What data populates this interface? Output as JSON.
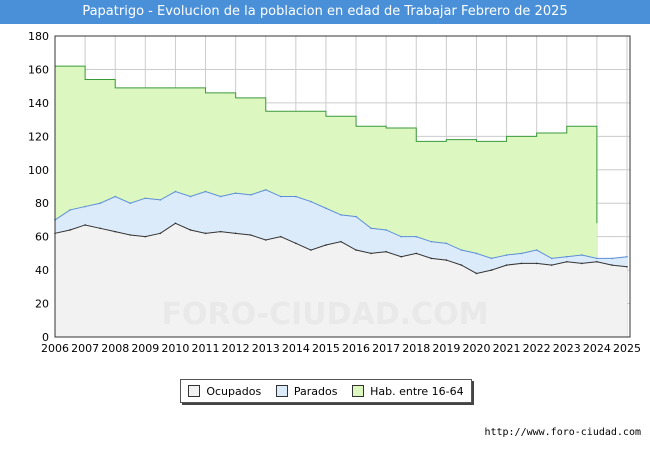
{
  "title": "Papatrigo - Evolucion de la poblacion en edad de Trabajar Febrero de 2025",
  "source": "http://www.foro-ciudad.com",
  "colors": {
    "title_bg": "#4a90d9",
    "occupied_fill": "#f2f2f2",
    "unemployed_fill": "#dcebfa",
    "population_fill": "#ddf7c0",
    "population_line": "#3a9a3a",
    "unemployed_line": "#5c8fd6",
    "occupied_line": "#333333"
  },
  "chart_data": {
    "type": "area",
    "title": "Papatrigo - Evolucion de la poblacion en edad de Trabajar Febrero de 2025",
    "xlabel": "",
    "ylabel": "",
    "x_ticks": [
      "2006",
      "2007",
      "2008",
      "2009",
      "2010",
      "2011",
      "2012",
      "2013",
      "2014",
      "2015",
      "2016",
      "2017",
      "2018",
      "2019",
      "2020",
      "2021",
      "2022",
      "2023",
      "2024",
      "2025"
    ],
    "y_ticks": [
      0,
      20,
      40,
      60,
      80,
      100,
      120,
      140,
      160,
      180
    ],
    "ylim": [
      0,
      180
    ],
    "xlim": [
      2006,
      2025.1
    ],
    "grid": true,
    "legend": {
      "position": "bottom-center",
      "entries": [
        {
          "key": "occupied",
          "label": "Ocupados"
        },
        {
          "key": "unemployed",
          "label": "Parados"
        },
        {
          "key": "population",
          "label": "Hab. entre 16-64"
        }
      ]
    },
    "series": [
      {
        "key": "population",
        "name": "Hab. entre 16-64",
        "type": "step",
        "x_start": [
          2006,
          2007,
          2008,
          2009,
          2010,
          2011,
          2012,
          2013,
          2014,
          2015,
          2016,
          2017,
          2018,
          2019,
          2020,
          2021,
          2022,
          2023
        ],
        "values": [
          162,
          154,
          149,
          149,
          149,
          146,
          143,
          135,
          135,
          132,
          126,
          125,
          117,
          118,
          117,
          120,
          122,
          126
        ],
        "end_x": 2024,
        "end_value": 68
      },
      {
        "key": "unemployed",
        "name": "Parados",
        "type": "line",
        "x": [
          2006,
          2006.5,
          2007,
          2007.5,
          2008,
          2008.5,
          2009,
          2009.5,
          2010,
          2010.5,
          2011,
          2011.5,
          2012,
          2012.5,
          2013,
          2013.5,
          2014,
          2014.5,
          2015,
          2015.5,
          2016,
          2016.5,
          2017,
          2017.5,
          2018,
          2018.5,
          2019,
          2019.5,
          2020,
          2020.5,
          2021,
          2021.5,
          2022,
          2022.5,
          2023,
          2023.5,
          2024,
          2024.5,
          2025
        ],
        "values": [
          70,
          76,
          78,
          80,
          84,
          80,
          83,
          82,
          87,
          84,
          87,
          84,
          86,
          85,
          88,
          84,
          84,
          81,
          77,
          73,
          72,
          65,
          64,
          60,
          60,
          57,
          56,
          52,
          50,
          47,
          49,
          50,
          52,
          47,
          48,
          49,
          47,
          47,
          48
        ]
      },
      {
        "key": "occupied",
        "name": "Ocupados",
        "type": "line",
        "x": [
          2006,
          2006.5,
          2007,
          2007.5,
          2008,
          2008.5,
          2009,
          2009.5,
          2010,
          2010.5,
          2011,
          2011.5,
          2012,
          2012.5,
          2013,
          2013.5,
          2014,
          2014.5,
          2015,
          2015.5,
          2016,
          2016.5,
          2017,
          2017.5,
          2018,
          2018.5,
          2019,
          2019.5,
          2020,
          2020.5,
          2021,
          2021.5,
          2022,
          2022.5,
          2023,
          2023.5,
          2024,
          2024.5,
          2025
        ],
        "values": [
          62,
          64,
          67,
          65,
          63,
          61,
          60,
          62,
          68,
          64,
          62,
          63,
          62,
          61,
          58,
          60,
          56,
          52,
          55,
          57,
          52,
          50,
          51,
          48,
          50,
          47,
          46,
          43,
          38,
          40,
          43,
          44,
          44,
          43,
          45,
          44,
          45,
          43,
          42
        ]
      }
    ]
  }
}
